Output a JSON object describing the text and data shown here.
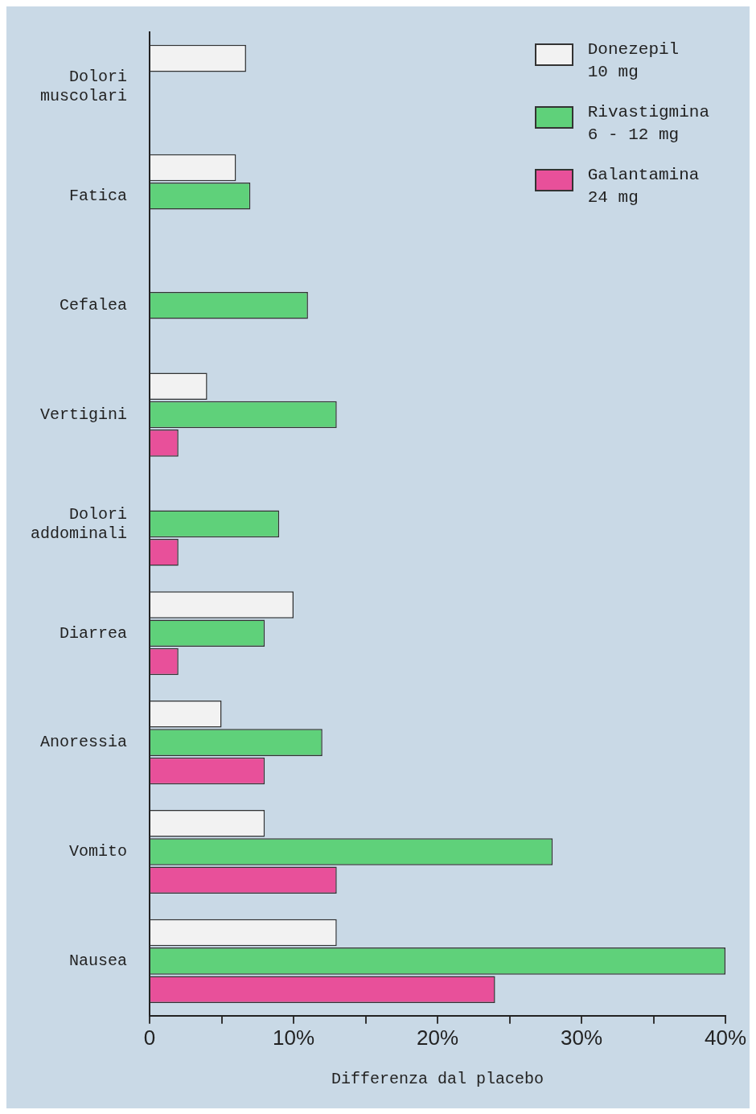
{
  "chart_data": {
    "type": "bar",
    "orientation": "horizontal",
    "xlabel": "Differenza dal placebo",
    "categories": [
      "Dolori\nmuscolari",
      "Fatica",
      "Cefalea",
      "Vertigini",
      "Dolori\naddominali",
      "Diarrea",
      "Anoressia",
      "Vomito",
      "Nausea"
    ],
    "series": [
      {
        "name": "Donezepil\n10 mg",
        "color": "#f2f2f2",
        "values": [
          6.7,
          6,
          null,
          4,
          null,
          10,
          5,
          8,
          13
        ]
      },
      {
        "name": "Rivastigmina\n6 - 12 mg",
        "color": "#5fd17a",
        "values": [
          null,
          7,
          11,
          13,
          9,
          8,
          12,
          28,
          40
        ]
      },
      {
        "name": "Galantamina\n24 mg",
        "color": "#e8509a",
        "values": [
          null,
          null,
          null,
          2,
          2,
          2,
          8,
          13,
          24
        ]
      }
    ],
    "xlim": [
      0,
      40
    ],
    "xticks": [
      0,
      {
        "value": 5,
        "label": null
      },
      {
        "value": 10,
        "label": "10%"
      },
      {
        "value": 15,
        "label": null
      },
      {
        "value": 20,
        "label": "20%"
      },
      {
        "value": 25,
        "label": null
      },
      {
        "value": 30,
        "label": "30%"
      },
      {
        "value": 35,
        "label": null
      },
      {
        "value": 40,
        "label": "40%"
      }
    ],
    "grid": false,
    "legend": "top right"
  }
}
